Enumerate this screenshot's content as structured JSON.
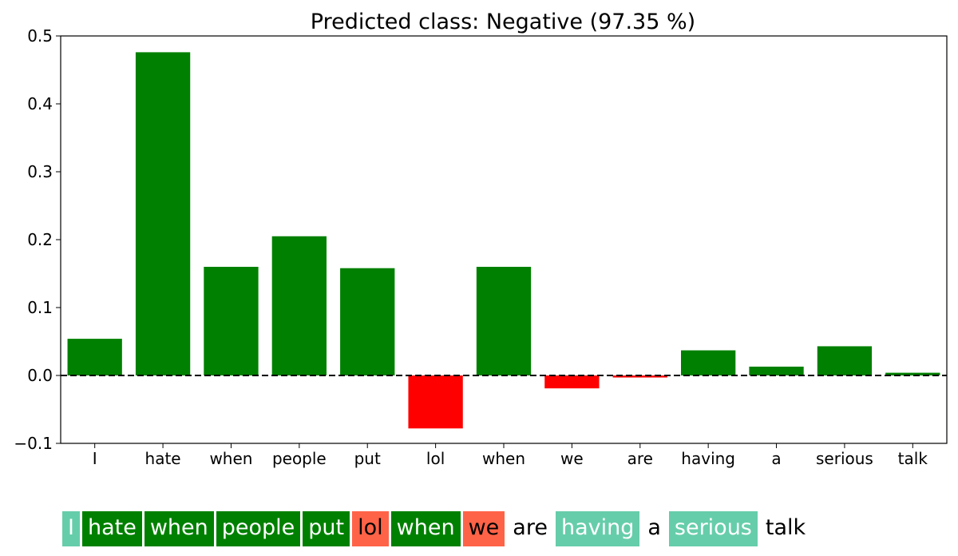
{
  "chart_data": {
    "type": "bar",
    "title": "Predicted class: Negative (97.35 %)",
    "xlabel": "",
    "ylabel": "",
    "categories": [
      "I",
      "hate",
      "when",
      "people",
      "put",
      "lol",
      "when",
      "we",
      "are",
      "having",
      "a",
      "serious",
      "talk"
    ],
    "values": [
      0.054,
      0.476,
      0.16,
      0.205,
      0.158,
      -0.078,
      0.16,
      -0.019,
      -0.003,
      0.037,
      0.013,
      0.043,
      0.004
    ],
    "ylim": [
      -0.1,
      0.5
    ],
    "yticks": [
      -0.1,
      0.0,
      0.1,
      0.2,
      0.3,
      0.4,
      0.5
    ],
    "ytick_labels": [
      "−0.1",
      "0.0",
      "0.1",
      "0.2",
      "0.3",
      "0.4",
      "0.5"
    ],
    "positive_color": "#008000",
    "negative_color": "#ff0000",
    "zero_line": "dashed",
    "grid": false
  },
  "highlighted_text": {
    "tokens": [
      {
        "text": "I",
        "bg": "#66cdaa",
        "fg": "#ffffff"
      },
      {
        "text": "hate",
        "bg": "#008000",
        "fg": "#ffffff"
      },
      {
        "text": "when",
        "bg": "#008000",
        "fg": "#ffffff"
      },
      {
        "text": "people",
        "bg": "#008000",
        "fg": "#ffffff"
      },
      {
        "text": "put",
        "bg": "#008000",
        "fg": "#ffffff"
      },
      {
        "text": "lol",
        "bg": "#ff6347",
        "fg": "#000000"
      },
      {
        "text": "when",
        "bg": "#008000",
        "fg": "#ffffff"
      },
      {
        "text": "we",
        "bg": "#ff6347",
        "fg": "#000000"
      },
      {
        "text": "are",
        "bg": "#ffffff",
        "fg": "#000000"
      },
      {
        "text": "having",
        "bg": "#66cdaa",
        "fg": "#ffffff"
      },
      {
        "text": "a",
        "bg": "#ffffff",
        "fg": "#000000"
      },
      {
        "text": "serious",
        "bg": "#66cdaa",
        "fg": "#ffffff"
      },
      {
        "text": "talk",
        "bg": "#ffffff",
        "fg": "#000000"
      }
    ]
  }
}
